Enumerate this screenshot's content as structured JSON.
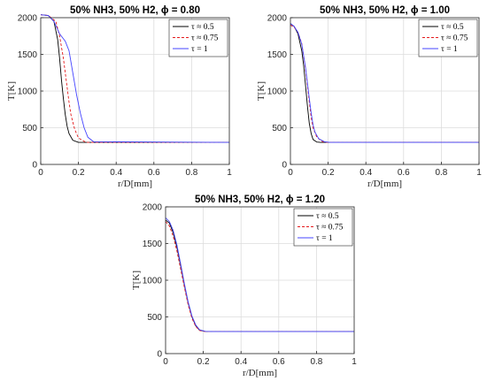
{
  "colors": {
    "series_black": "#000000",
    "series_red": "#e41a1c",
    "series_blue": "#4545ff",
    "grid": "#dddddd",
    "axis": "#262626"
  },
  "chart_data": [
    {
      "type": "line",
      "title": "50% NH3, 50% H2, ϕ = 0.80",
      "xlabel": "r/D[mm]",
      "ylabel": "T[K]",
      "xlim": [
        0,
        1
      ],
      "ylim": [
        0,
        2000
      ],
      "xticks": [
        "0",
        "0.2",
        "0.4",
        "0.6",
        "0.8",
        "1"
      ],
      "yticks": [
        "0",
        "500",
        "1000",
        "1500",
        "2000"
      ],
      "grid": true,
      "legend_position": "top-right",
      "series": [
        {
          "name": "τ ≈ 0.5",
          "color": "#000000",
          "dash": "solid",
          "x": [
            0,
            0.04,
            0.07,
            0.09,
            0.1,
            0.11,
            0.12,
            0.13,
            0.14,
            0.15,
            0.17,
            0.2,
            1
          ],
          "y": [
            2040,
            2030,
            1950,
            1700,
            1450,
            1150,
            900,
            680,
            520,
            420,
            330,
            300,
            300
          ]
        },
        {
          "name": "τ ≈ 0.75",
          "color": "#e41a1c",
          "dash": "dashed",
          "x": [
            0,
            0.04,
            0.08,
            0.1,
            0.12,
            0.13,
            0.14,
            0.15,
            0.16,
            0.18,
            0.2,
            0.24,
            1
          ],
          "y": [
            2040,
            2030,
            1950,
            1750,
            1450,
            1250,
            1050,
            850,
            680,
            480,
            360,
            300,
            300
          ]
        },
        {
          "name": "τ = 1",
          "color": "#4545ff",
          "dash": "solid",
          "x": [
            0,
            0.04,
            0.07,
            0.1,
            0.13,
            0.15,
            0.17,
            0.19,
            0.21,
            0.23,
            0.25,
            0.28,
            1
          ],
          "y": [
            2040,
            2030,
            1950,
            1780,
            1680,
            1550,
            1250,
            950,
            700,
            500,
            370,
            310,
            300
          ]
        }
      ]
    },
    {
      "type": "line",
      "title": "50% NH3, 50% H2, ϕ = 1.00",
      "xlabel": "r/D[mm]",
      "ylabel": "T[K]",
      "xlim": [
        0,
        1
      ],
      "ylim": [
        0,
        2000
      ],
      "xticks": [
        "0",
        "0.2",
        "0.4",
        "0.6",
        "0.8",
        "1"
      ],
      "yticks": [
        "0",
        "500",
        "1000",
        "1500",
        "2000"
      ],
      "grid": true,
      "legend_position": "top-right",
      "series": [
        {
          "name": "τ ≈ 0.5",
          "color": "#000000",
          "dash": "solid",
          "x": [
            0,
            0.02,
            0.04,
            0.06,
            0.07,
            0.08,
            0.09,
            0.1,
            0.11,
            0.12,
            0.14,
            0.16,
            1
          ],
          "y": [
            1920,
            1880,
            1780,
            1550,
            1350,
            1080,
            800,
            560,
            420,
            340,
            305,
            300,
            300
          ]
        },
        {
          "name": "τ ≈ 0.75",
          "color": "#e41a1c",
          "dash": "dashed",
          "x": [
            0,
            0.02,
            0.04,
            0.06,
            0.08,
            0.09,
            0.1,
            0.11,
            0.12,
            0.14,
            0.17,
            0.2,
            1
          ],
          "y": [
            1900,
            1870,
            1800,
            1650,
            1300,
            1080,
            850,
            640,
            500,
            370,
            310,
            300,
            300
          ]
        },
        {
          "name": "τ = 1",
          "color": "#4545ff",
          "dash": "solid",
          "x": [
            0,
            0.02,
            0.04,
            0.06,
            0.08,
            0.1,
            0.11,
            0.12,
            0.13,
            0.15,
            0.18,
            0.21,
            1
          ],
          "y": [
            1920,
            1880,
            1800,
            1640,
            1320,
            900,
            700,
            540,
            440,
            350,
            310,
            300,
            300
          ]
        }
      ]
    },
    {
      "type": "line",
      "title": "50% NH3, 50% H2, ϕ = 1.20",
      "xlabel": "r/D[mm]",
      "ylabel": "T[K]",
      "xlim": [
        0,
        1
      ],
      "ylim": [
        0,
        2000
      ],
      "xticks": [
        "0",
        "0.2",
        "0.4",
        "0.6",
        "0.8",
        "1"
      ],
      "yticks": [
        "0",
        "500",
        "1000",
        "1500",
        "2000"
      ],
      "grid": true,
      "legend_position": "top-right",
      "series": [
        {
          "name": "τ ≈ 0.5",
          "color": "#000000",
          "dash": "solid",
          "x": [
            0,
            0.02,
            0.04,
            0.06,
            0.08,
            0.1,
            0.12,
            0.14,
            0.16,
            0.18,
            0.21,
            0.25,
            1
          ],
          "y": [
            1820,
            1780,
            1650,
            1450,
            1200,
            930,
            690,
            500,
            380,
            320,
            302,
            300,
            300
          ]
        },
        {
          "name": "τ ≈ 0.75",
          "color": "#e41a1c",
          "dash": "dashed",
          "x": [
            0,
            0.02,
            0.04,
            0.06,
            0.08,
            0.1,
            0.12,
            0.14,
            0.16,
            0.18,
            0.21,
            0.25,
            1
          ],
          "y": [
            1800,
            1740,
            1600,
            1400,
            1150,
            900,
            660,
            480,
            370,
            315,
            301,
            300,
            300
          ]
        },
        {
          "name": "τ = 1",
          "color": "#4545ff",
          "dash": "solid",
          "x": [
            0,
            0.02,
            0.04,
            0.06,
            0.08,
            0.1,
            0.12,
            0.14,
            0.16,
            0.18,
            0.21,
            0.25,
            1
          ],
          "y": [
            1850,
            1800,
            1680,
            1480,
            1220,
            950,
            700,
            510,
            390,
            325,
            303,
            300,
            300
          ]
        }
      ]
    }
  ]
}
